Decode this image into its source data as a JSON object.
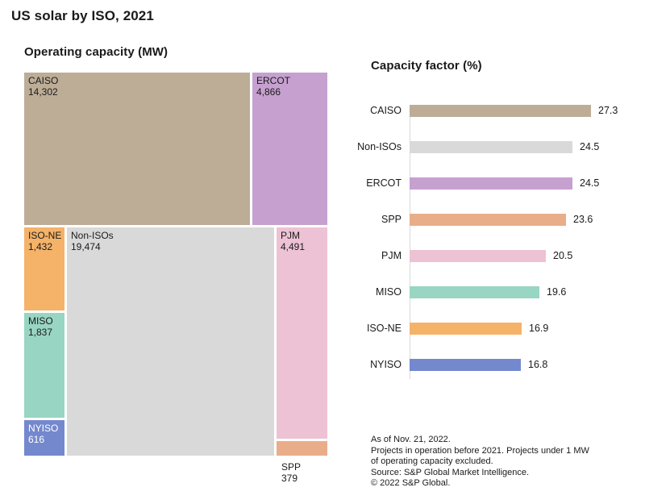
{
  "page": {
    "title": "US solar by ISO, 2021"
  },
  "palette": {
    "CAISO": "#bdad97",
    "ERCOT": "#c6a0cf",
    "Non-ISOs": "#d9d9d9",
    "ISO-NE": "#f4b369",
    "MISO": "#98d5c2",
    "NYISO": "#7488ce",
    "PJM": "#edc2d4",
    "SPP": "#e9ad89"
  },
  "chart_data": [
    {
      "type": "treemap",
      "title": "Operating capacity (MW)",
      "unit": "MW",
      "items": [
        {
          "label": "CAISO",
          "value": 14302,
          "display_value": "14,302",
          "color": "#bdad97",
          "text_color": "#1a1a1a"
        },
        {
          "label": "ERCOT",
          "value": 4866,
          "display_value": "4,866",
          "color": "#c6a0cf",
          "text_color": "#1a1a1a"
        },
        {
          "label": "ISO-NE",
          "value": 1432,
          "display_value": "1,432",
          "color": "#f4b369",
          "text_color": "#1a1a1a"
        },
        {
          "label": "Non-ISOs",
          "value": 19474,
          "display_value": "19,474",
          "color": "#d9d9d9",
          "text_color": "#1a1a1a"
        },
        {
          "label": "MISO",
          "value": 1837,
          "display_value": "1,837",
          "color": "#98d5c2",
          "text_color": "#1a1a1a"
        },
        {
          "label": "NYISO",
          "value": 616,
          "display_value": "616",
          "color": "#7488ce",
          "text_color": "#ffffff"
        },
        {
          "label": "PJM",
          "value": 4491,
          "display_value": "4,491",
          "color": "#edc2d4",
          "text_color": "#1a1a1a"
        },
        {
          "label": "SPP",
          "value": 379,
          "display_value": "379",
          "color": "#e9ad89",
          "text_color": "#1a1a1a"
        }
      ]
    },
    {
      "type": "bar",
      "title": "Capacity factor (%)",
      "orientation": "horizontal",
      "categories": [
        "CAISO",
        "Non-ISOs",
        "ERCOT",
        "SPP",
        "PJM",
        "MISO",
        "ISO-NE",
        "NYISO"
      ],
      "values": [
        27.3,
        24.5,
        24.5,
        23.6,
        20.5,
        19.6,
        16.9,
        16.8
      ],
      "value_labels": [
        "27.3",
        "24.5",
        "24.5",
        "23.6",
        "20.5",
        "19.6",
        "16.9",
        "16.8"
      ],
      "xlim": [
        0,
        30
      ],
      "grid": false,
      "legend": "none"
    }
  ],
  "footnotes": [
    "As of Nov. 21, 2022.",
    "Projects in operation before 2021. Projects under 1 MW",
    "of operating capacity excluded.",
    "Source: S&P Global Market Intelligence.",
    "© 2022 S&P Global."
  ]
}
